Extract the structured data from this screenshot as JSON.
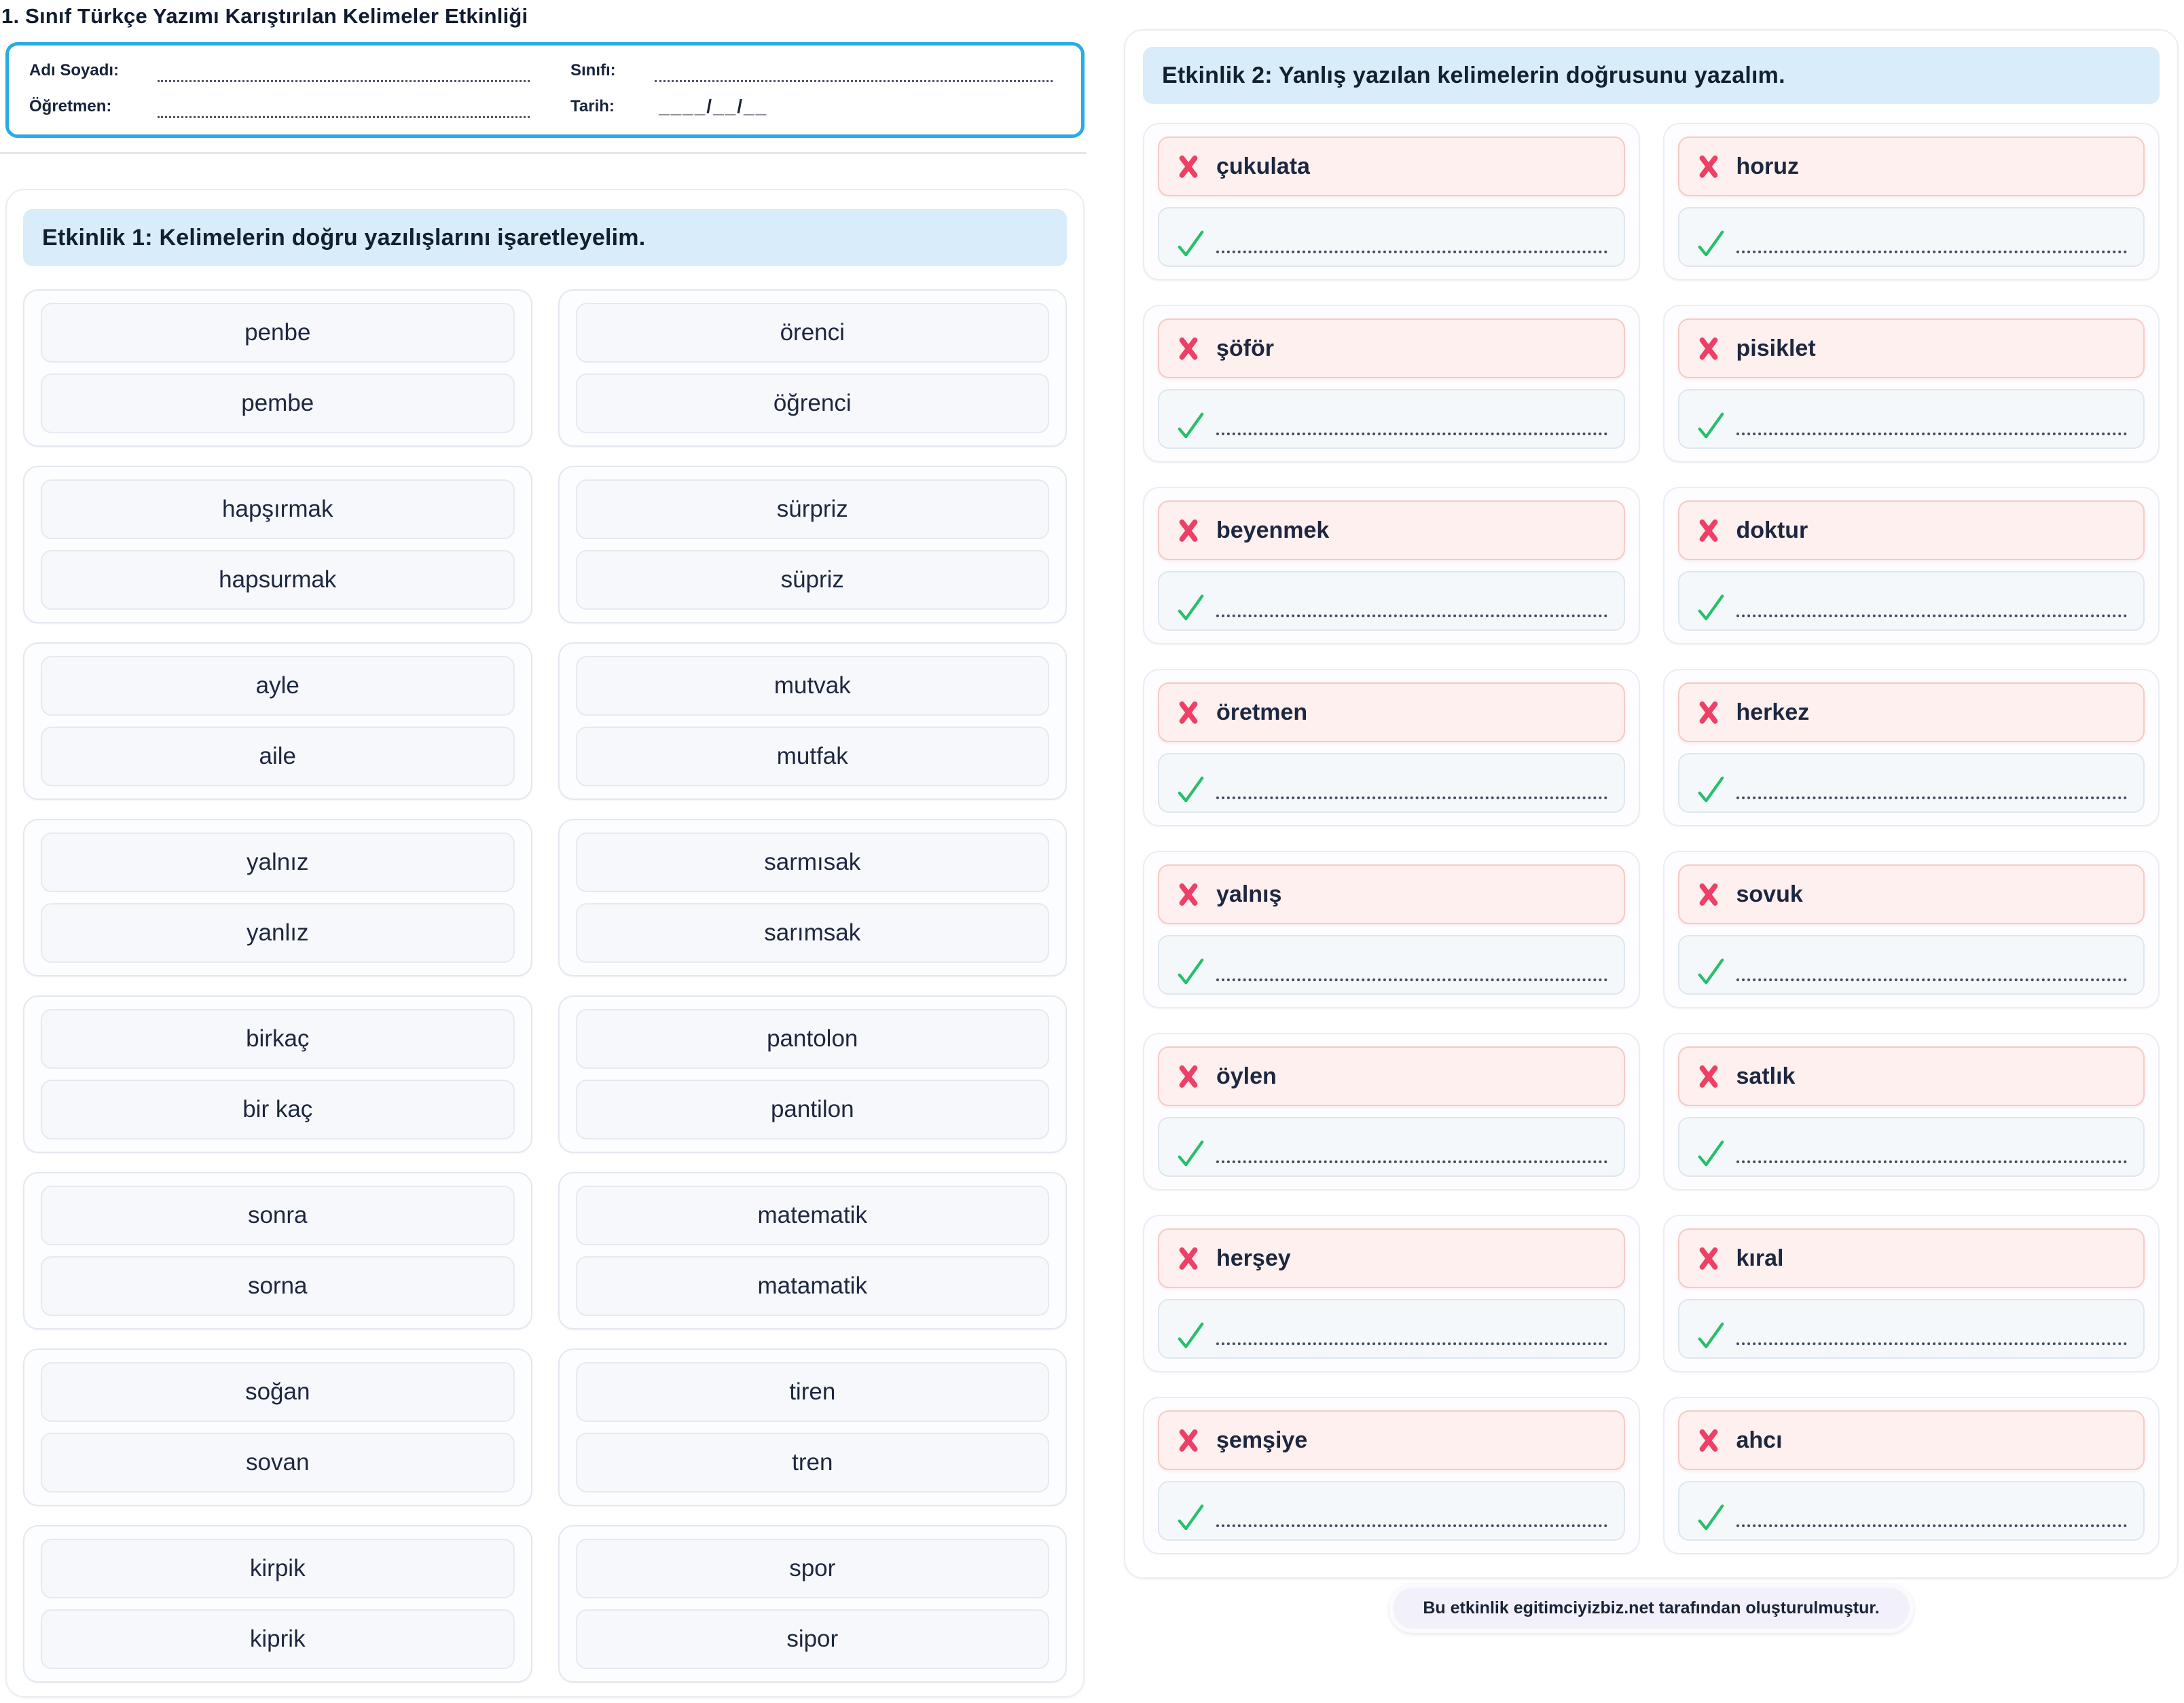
{
  "page_title": "1. Sınıf Türkçe Yazımı Karıştırılan Kelimeler Etkinliği",
  "form": {
    "name_label": "Adı Soyadı:",
    "class_label": "Sınıfı:",
    "teacher_label": "Öğretmen:",
    "date_label": "Tarih:",
    "date_value": "____/__/__"
  },
  "activity1": {
    "title": "Etkinlik 1: Kelimelerin doğru yazılışlarını işaretleyelim.",
    "pairs": [
      {
        "options": [
          "penbe",
          "pembe"
        ]
      },
      {
        "options": [
          "örenci",
          "öğrenci"
        ]
      },
      {
        "options": [
          "hapşırmak",
          "hapsurmak"
        ]
      },
      {
        "options": [
          "sürpriz",
          "süpriz"
        ]
      },
      {
        "options": [
          "ayle",
          "aile"
        ]
      },
      {
        "options": [
          "mutvak",
          "mutfak"
        ]
      },
      {
        "options": [
          "yalnız",
          "yanlız"
        ]
      },
      {
        "options": [
          "sarmısak",
          "sarımsak"
        ]
      },
      {
        "options": [
          "birkaç",
          "bir kaç"
        ]
      },
      {
        "options": [
          "pantolon",
          "pantilon"
        ]
      },
      {
        "options": [
          "sonra",
          "sorna"
        ]
      },
      {
        "options": [
          "matematik",
          "matamatik"
        ]
      },
      {
        "options": [
          "soğan",
          "sovan"
        ]
      },
      {
        "options": [
          "tiren",
          "tren"
        ]
      },
      {
        "options": [
          "kirpik",
          "kiprik"
        ]
      },
      {
        "options": [
          "spor",
          "sipor"
        ]
      }
    ]
  },
  "activity2": {
    "title": "Etkinlik 2: Yanlış yazılan kelimelerin doğrusunu yazalım.",
    "items": [
      "çukulata",
      "horuz",
      "şöför",
      "pisiklet",
      "beyenmek",
      "doktur",
      "öretmen",
      "herkez",
      "yalnış",
      "sovuk",
      "öylen",
      "satlık",
      "herşey",
      "kıral",
      "şemşiye",
      "ahcı"
    ]
  },
  "footer": {
    "attribution": "Bu etkinlik egitimciyizbiz.net tarafından oluşturulmuştur."
  },
  "icons": {
    "wrong_icon": "x-icon",
    "correct_icon": "check-icon"
  },
  "colors": {
    "accent-blue": "#29ace4",
    "band-blue": "#d9ecfa",
    "text-dark": "#1d2740",
    "wrong-bg": "#fdf0ee",
    "wrong-border": "#f6cac4",
    "x-red": "#ee4066",
    "check-green": "#27bf6c",
    "answer-bg": "#f5f8fa",
    "answer-border": "#dee6ee",
    "footer-bg": "#f2f1fb"
  }
}
